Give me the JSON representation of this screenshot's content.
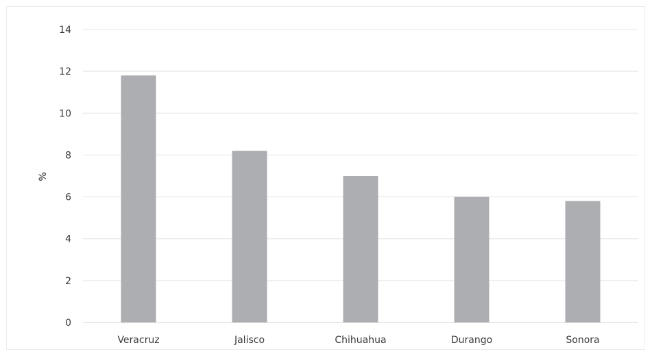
{
  "chart_data": {
    "type": "bar",
    "title": "",
    "xlabel": "",
    "ylabel": "%",
    "categories": [
      "Veracruz",
      "Jalisco",
      "Chihuahua",
      "Durango",
      "Sonora"
    ],
    "values": [
      11.8,
      8.2,
      7.0,
      6.0,
      5.8
    ],
    "yticks": [
      "0",
      "2",
      "4",
      "6",
      "8",
      "10",
      "12",
      "14"
    ],
    "ylim": [
      0,
      14
    ],
    "grid": true,
    "legend": "none",
    "bar_color": "#adaeb1"
  }
}
